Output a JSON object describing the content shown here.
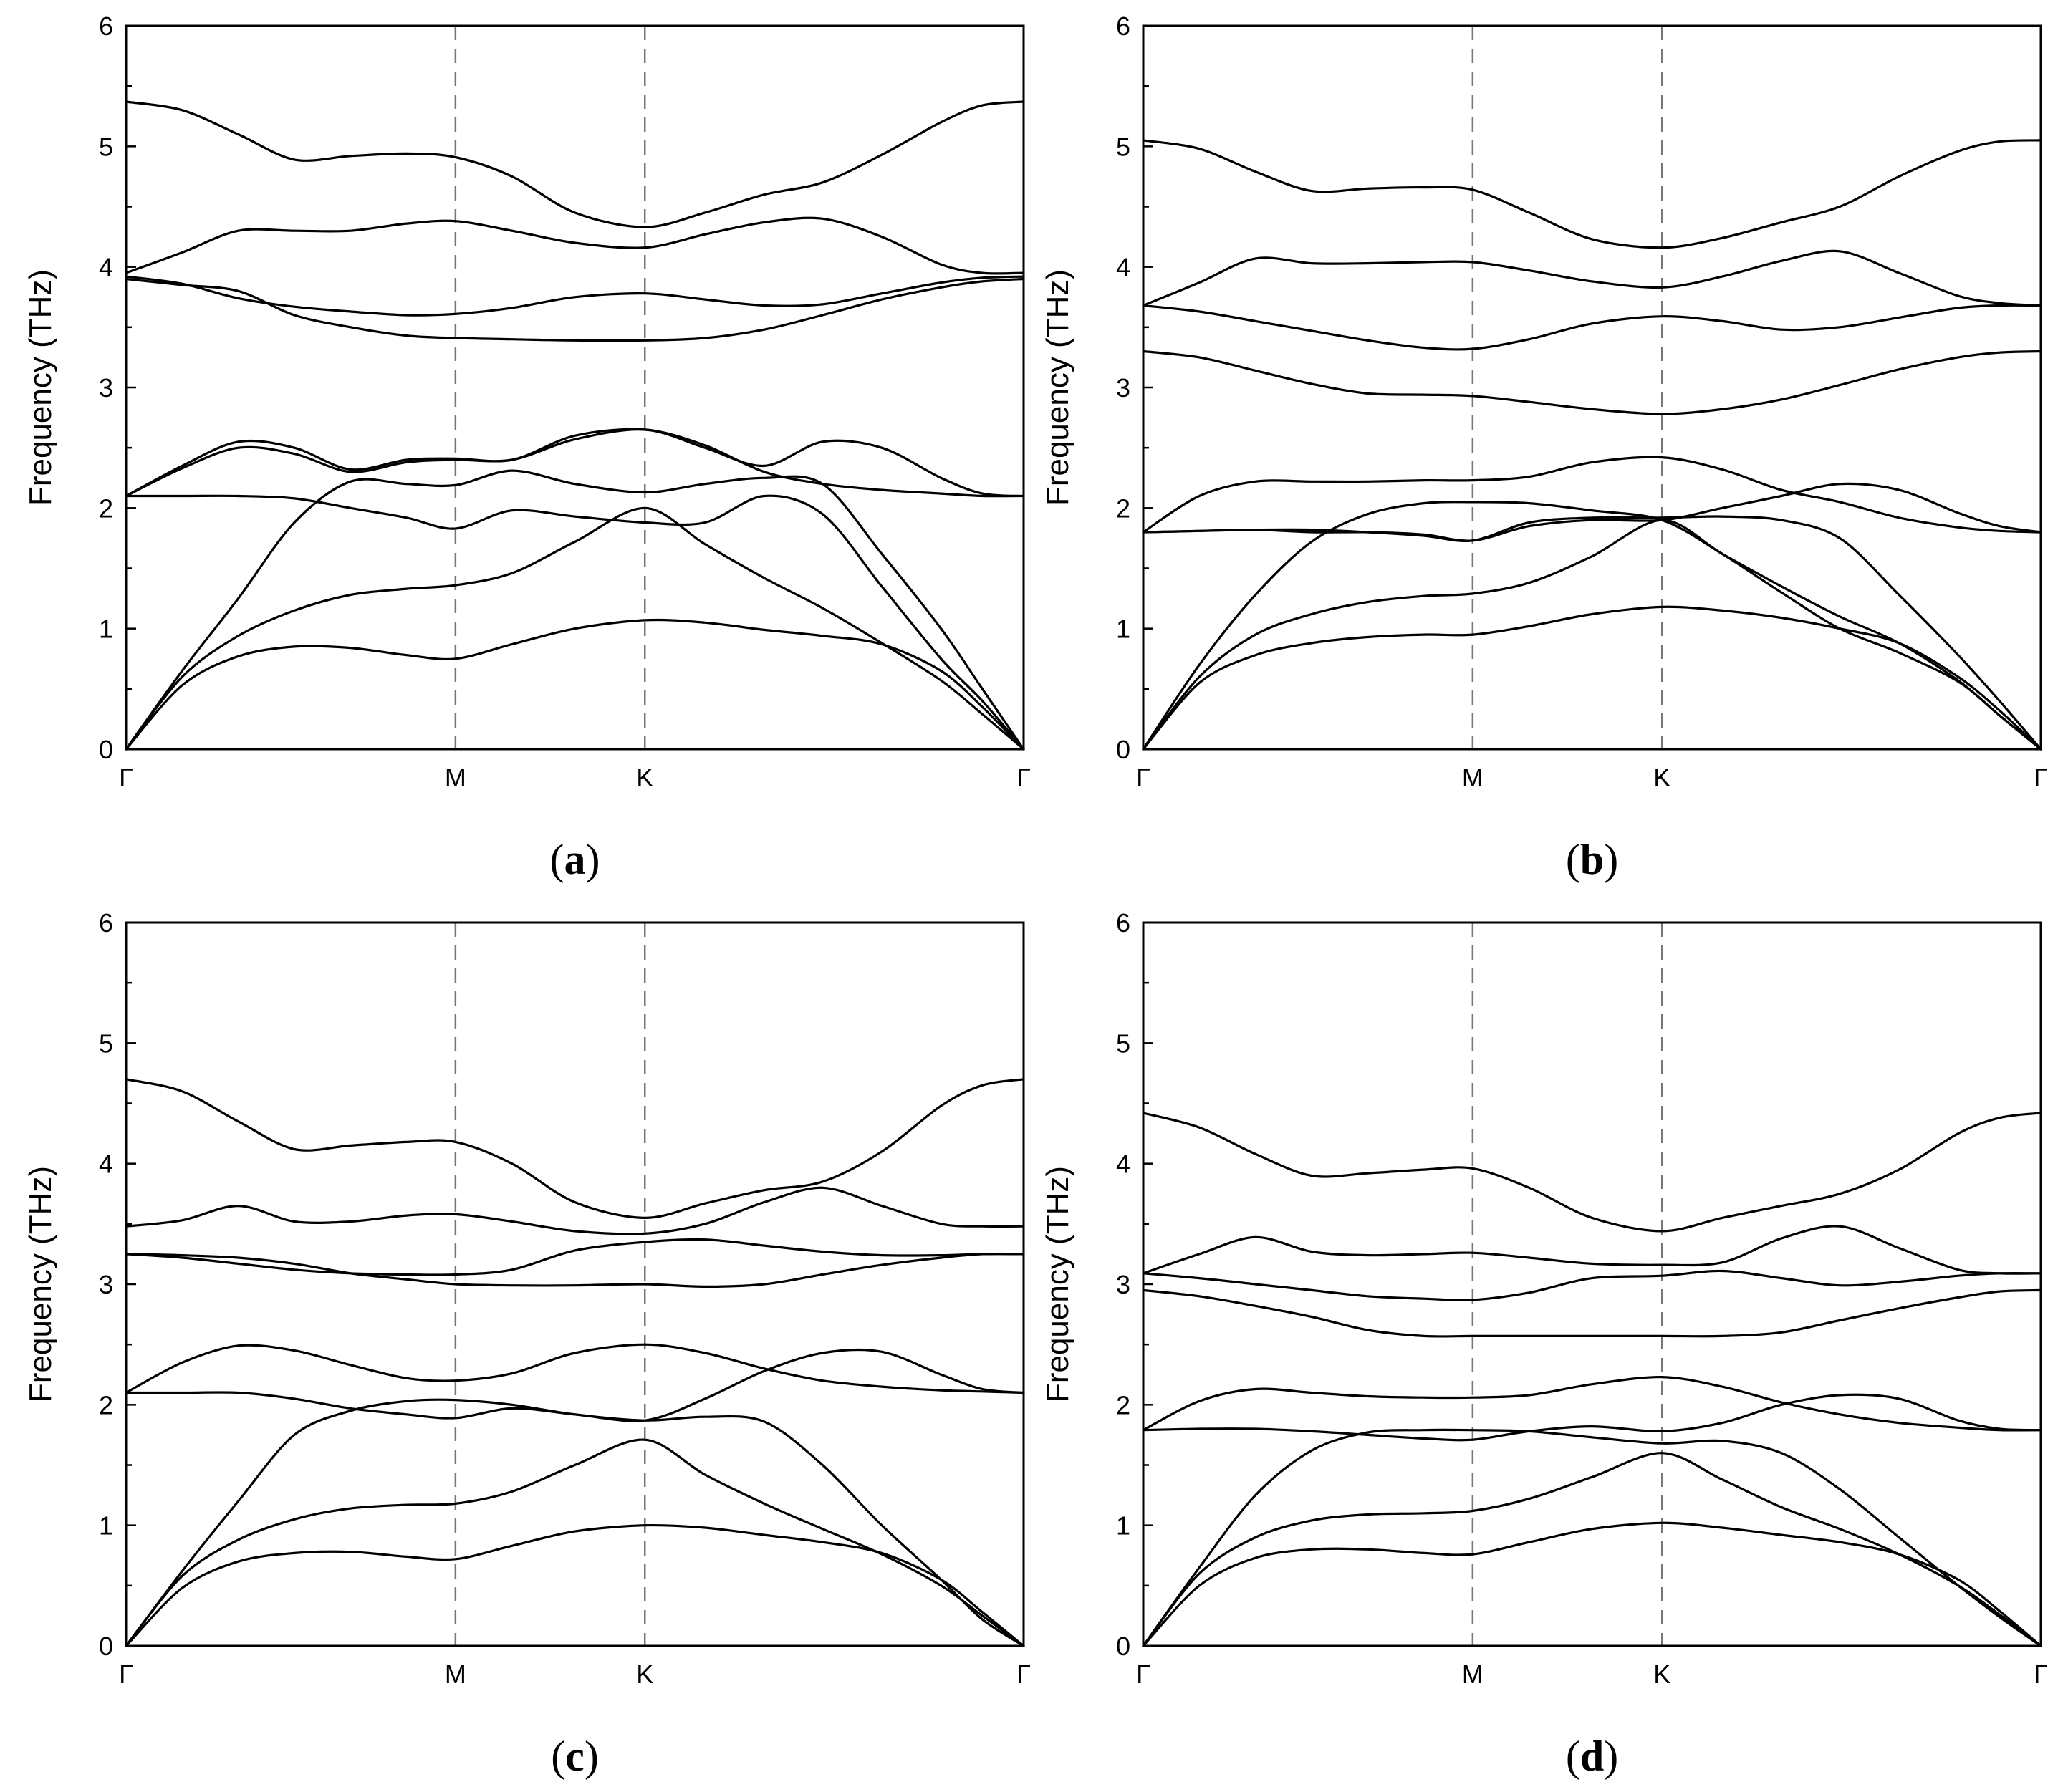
{
  "chart_data": [
    {
      "type": "line",
      "caption_letter": "a",
      "ylabel": "Frequency (THz)",
      "ylim": [
        0,
        6
      ],
      "yticks": [
        0,
        1,
        2,
        3,
        4,
        5,
        6
      ],
      "x": [
        0,
        0.0625,
        0.125,
        0.1875,
        0.25,
        0.3125,
        0.367,
        0.43,
        0.5,
        0.578,
        0.645,
        0.711,
        0.776,
        0.842,
        0.908,
        0.954,
        1
      ],
      "high_symmetry_points": [
        {
          "label": "Γ",
          "x": 0
        },
        {
          "label": "M",
          "x": 0.367
        },
        {
          "label": "K",
          "x": 0.578
        },
        {
          "label": "Γ",
          "x": 1
        }
      ],
      "series": [
        {
          "values": [
            0,
            0.53,
            0.77,
            0.85,
            0.84,
            0.78,
            0.75,
            0.87,
            1.0,
            1.07,
            1.05,
            0.99,
            0.94,
            0.87,
            0.65,
            0.35,
            0
          ]
        },
        {
          "values": [
            0,
            0.6,
            0.94,
            1.15,
            1.28,
            1.33,
            1.36,
            1.46,
            1.72,
            2.0,
            1.7,
            1.42,
            1.17,
            0.88,
            0.57,
            0.29,
            0
          ]
        },
        {
          "values": [
            0,
            0.65,
            1.25,
            1.88,
            2.22,
            2.2,
            2.19,
            2.31,
            2.2,
            2.13,
            2.2,
            2.25,
            2.2,
            1.62,
            1.0,
            0.5,
            0
          ]
        },
        {
          "values": [
            2.1,
            2.1,
            2.1,
            2.08,
            2.0,
            1.92,
            1.83,
            1.98,
            1.93,
            1.88,
            1.88,
            2.1,
            1.95,
            1.35,
            0.75,
            0.4,
            0
          ]
        },
        {
          "values": [
            2.1,
            2.35,
            2.55,
            2.5,
            2.32,
            2.4,
            2.41,
            2.4,
            2.6,
            2.65,
            2.52,
            2.3,
            2.2,
            2.15,
            2.12,
            2.1,
            2.1
          ]
        },
        {
          "values": [
            2.1,
            2.33,
            2.5,
            2.45,
            2.3,
            2.38,
            2.4,
            2.4,
            2.57,
            2.65,
            2.5,
            2.35,
            2.55,
            2.5,
            2.25,
            2.12,
            2.1
          ]
        },
        {
          "values": [
            3.9,
            3.85,
            3.8,
            3.6,
            3.5,
            3.43,
            3.41,
            3.4,
            3.39,
            3.39,
            3.41,
            3.48,
            3.6,
            3.73,
            3.83,
            3.88,
            3.9
          ]
        },
        {
          "values": [
            3.92,
            3.86,
            3.74,
            3.67,
            3.63,
            3.6,
            3.61,
            3.66,
            3.75,
            3.78,
            3.73,
            3.68,
            3.69,
            3.78,
            3.87,
            3.91,
            3.92
          ]
        },
        {
          "values": [
            3.95,
            4.12,
            4.3,
            4.3,
            4.3,
            4.36,
            4.38,
            4.3,
            4.2,
            4.16,
            4.27,
            4.37,
            4.4,
            4.25,
            4.02,
            3.95,
            3.95
          ]
        },
        {
          "values": [
            5.37,
            5.3,
            5.1,
            4.89,
            4.92,
            4.94,
            4.91,
            4.75,
            4.45,
            4.33,
            4.45,
            4.6,
            4.7,
            4.93,
            5.2,
            5.34,
            5.37
          ]
        }
      ]
    },
    {
      "type": "line",
      "caption_letter": "b",
      "ylabel": "Frequency (THz)",
      "ylim": [
        0,
        6
      ],
      "yticks": [
        0,
        1,
        2,
        3,
        4,
        5,
        6
      ],
      "x": [
        0,
        0.0625,
        0.125,
        0.1875,
        0.25,
        0.3125,
        0.367,
        0.43,
        0.5,
        0.578,
        0.645,
        0.711,
        0.776,
        0.842,
        0.908,
        0.954,
        1
      ],
      "high_symmetry_points": [
        {
          "label": "Γ",
          "x": 0
        },
        {
          "label": "M",
          "x": 0.367
        },
        {
          "label": "K",
          "x": 0.578
        },
        {
          "label": "Γ",
          "x": 1
        }
      ],
      "series": [
        {
          "values": [
            0,
            0.55,
            0.78,
            0.88,
            0.93,
            0.95,
            0.95,
            1.02,
            1.12,
            1.18,
            1.15,
            1.09,
            1.0,
            0.88,
            0.6,
            0.32,
            0
          ]
        },
        {
          "values": [
            0,
            0.6,
            0.95,
            1.12,
            1.22,
            1.27,
            1.29,
            1.38,
            1.6,
            1.9,
            1.62,
            1.35,
            1.1,
            0.88,
            0.57,
            0.28,
            0
          ]
        },
        {
          "values": [
            0,
            0.7,
            1.28,
            1.72,
            1.95,
            2.04,
            2.05,
            2.04,
            1.98,
            1.9,
            1.62,
            1.3,
            1.0,
            0.8,
            0.56,
            0.28,
            0
          ]
        },
        {
          "values": [
            1.8,
            1.81,
            1.82,
            1.82,
            1.8,
            1.77,
            1.73,
            1.88,
            1.92,
            1.92,
            1.93,
            1.9,
            1.75,
            1.28,
            0.78,
            0.4,
            0
          ]
        },
        {
          "values": [
            1.8,
            1.81,
            1.82,
            1.8,
            1.8,
            1.78,
            1.73,
            1.85,
            1.9,
            1.9,
            2.0,
            2.1,
            2.2,
            2.15,
            1.96,
            1.85,
            1.8
          ]
        },
        {
          "values": [
            1.8,
            2.1,
            2.22,
            2.22,
            2.22,
            2.23,
            2.23,
            2.26,
            2.38,
            2.42,
            2.32,
            2.15,
            2.05,
            1.92,
            1.84,
            1.81,
            1.8
          ]
        },
        {
          "values": [
            3.3,
            3.25,
            3.14,
            3.03,
            2.95,
            2.94,
            2.93,
            2.88,
            2.82,
            2.78,
            2.82,
            2.9,
            3.02,
            3.15,
            3.25,
            3.29,
            3.3
          ]
        },
        {
          "values": [
            3.68,
            3.63,
            3.55,
            3.47,
            3.39,
            3.33,
            3.32,
            3.4,
            3.53,
            3.59,
            3.55,
            3.48,
            3.5,
            3.58,
            3.66,
            3.68,
            3.68
          ]
        },
        {
          "values": [
            3.68,
            3.87,
            4.07,
            4.03,
            4.03,
            4.04,
            4.04,
            3.97,
            3.88,
            3.83,
            3.92,
            4.05,
            4.13,
            3.95,
            3.76,
            3.7,
            3.68
          ]
        },
        {
          "values": [
            5.05,
            4.98,
            4.79,
            4.63,
            4.65,
            4.66,
            4.64,
            4.45,
            4.23,
            4.16,
            4.24,
            4.37,
            4.5,
            4.75,
            4.96,
            5.04,
            5.05
          ]
        }
      ]
    },
    {
      "type": "line",
      "caption_letter": "c",
      "ylabel": "Frequency (THz)",
      "ylim": [
        0,
        6
      ],
      "yticks": [
        0,
        1,
        2,
        3,
        4,
        5,
        6
      ],
      "x": [
        0,
        0.0625,
        0.125,
        0.1875,
        0.25,
        0.3125,
        0.367,
        0.43,
        0.5,
        0.578,
        0.645,
        0.711,
        0.776,
        0.842,
        0.908,
        0.954,
        1
      ],
      "high_symmetry_points": [
        {
          "label": "Γ",
          "x": 0
        },
        {
          "label": "M",
          "x": 0.367
        },
        {
          "label": "K",
          "x": 0.578
        },
        {
          "label": "Γ",
          "x": 1
        }
      ],
      "series": [
        {
          "values": [
            0,
            0.48,
            0.7,
            0.77,
            0.78,
            0.74,
            0.72,
            0.83,
            0.95,
            1.0,
            0.98,
            0.92,
            0.86,
            0.77,
            0.55,
            0.28,
            0
          ]
        },
        {
          "values": [
            0,
            0.58,
            0.88,
            1.05,
            1.14,
            1.17,
            1.18,
            1.28,
            1.5,
            1.71,
            1.42,
            1.18,
            0.97,
            0.76,
            0.5,
            0.25,
            0
          ]
        },
        {
          "values": [
            0,
            0.62,
            1.2,
            1.75,
            1.95,
            2.03,
            2.04,
            2.0,
            1.92,
            1.87,
            1.9,
            1.86,
            1.5,
            1.0,
            0.55,
            0.22,
            0
          ]
        },
        {
          "values": [
            2.1,
            2.1,
            2.1,
            2.05,
            1.97,
            1.92,
            1.89,
            1.97,
            1.92,
            1.87,
            2.05,
            2.28,
            2.43,
            2.44,
            2.25,
            2.13,
            2.1
          ]
        },
        {
          "values": [
            2.1,
            2.35,
            2.49,
            2.45,
            2.33,
            2.22,
            2.2,
            2.26,
            2.43,
            2.5,
            2.43,
            2.3,
            2.2,
            2.15,
            2.12,
            2.11,
            2.1
          ]
        },
        {
          "values": [
            3.25,
            3.24,
            3.22,
            3.17,
            3.09,
            3.04,
            3.0,
            2.99,
            2.99,
            3.0,
            2.98,
            3.0,
            3.08,
            3.16,
            3.22,
            3.25,
            3.25
          ]
        },
        {
          "values": [
            3.25,
            3.22,
            3.17,
            3.12,
            3.09,
            3.08,
            3.08,
            3.12,
            3.28,
            3.35,
            3.37,
            3.32,
            3.27,
            3.24,
            3.24,
            3.25,
            3.25
          ]
        },
        {
          "values": [
            3.48,
            3.53,
            3.65,
            3.52,
            3.52,
            3.57,
            3.58,
            3.52,
            3.44,
            3.42,
            3.5,
            3.68,
            3.8,
            3.65,
            3.5,
            3.48,
            3.48
          ]
        },
        {
          "values": [
            4.7,
            4.6,
            4.35,
            4.12,
            4.15,
            4.18,
            4.18,
            4.0,
            3.68,
            3.55,
            3.67,
            3.78,
            3.85,
            4.1,
            4.48,
            4.65,
            4.7
          ]
        }
      ]
    },
    {
      "type": "line",
      "caption_letter": "d",
      "ylabel": "Frequency (THz)",
      "ylim": [
        0,
        6
      ],
      "yticks": [
        0,
        1,
        2,
        3,
        4,
        5,
        6
      ],
      "x": [
        0,
        0.0625,
        0.125,
        0.1875,
        0.25,
        0.3125,
        0.367,
        0.43,
        0.5,
        0.578,
        0.645,
        0.711,
        0.776,
        0.842,
        0.908,
        0.954,
        1
      ],
      "high_symmetry_points": [
        {
          "label": "Γ",
          "x": 0
        },
        {
          "label": "M",
          "x": 0.367
        },
        {
          "label": "K",
          "x": 0.578
        },
        {
          "label": "Γ",
          "x": 1
        }
      ],
      "series": [
        {
          "values": [
            0,
            0.5,
            0.73,
            0.8,
            0.8,
            0.77,
            0.76,
            0.86,
            0.97,
            1.02,
            0.98,
            0.92,
            0.86,
            0.76,
            0.55,
            0.29,
            0
          ]
        },
        {
          "values": [
            0,
            0.6,
            0.9,
            1.04,
            1.09,
            1.1,
            1.12,
            1.22,
            1.4,
            1.6,
            1.38,
            1.15,
            0.97,
            0.76,
            0.5,
            0.26,
            0
          ]
        },
        {
          "values": [
            0,
            0.65,
            1.25,
            1.62,
            1.77,
            1.79,
            1.79,
            1.78,
            1.73,
            1.68,
            1.7,
            1.6,
            1.3,
            0.9,
            0.5,
            0.24,
            0
          ]
        },
        {
          "values": [
            1.79,
            1.8,
            1.8,
            1.78,
            1.75,
            1.72,
            1.71,
            1.78,
            1.82,
            1.78,
            1.85,
            2.0,
            2.08,
            2.05,
            1.87,
            1.8,
            1.79
          ]
        },
        {
          "values": [
            1.79,
            2.03,
            2.13,
            2.1,
            2.07,
            2.06,
            2.06,
            2.08,
            2.17,
            2.23,
            2.15,
            2.02,
            1.92,
            1.85,
            1.81,
            1.79,
            1.79
          ]
        },
        {
          "values": [
            2.95,
            2.9,
            2.82,
            2.73,
            2.62,
            2.57,
            2.57,
            2.57,
            2.57,
            2.57,
            2.57,
            2.6,
            2.7,
            2.8,
            2.89,
            2.94,
            2.95
          ]
        },
        {
          "values": [
            3.09,
            3.05,
            3.0,
            2.95,
            2.9,
            2.88,
            2.87,
            2.93,
            3.05,
            3.07,
            3.11,
            3.05,
            2.99,
            3.02,
            3.07,
            3.09,
            3.09
          ]
        },
        {
          "values": [
            3.09,
            3.25,
            3.39,
            3.27,
            3.24,
            3.25,
            3.26,
            3.22,
            3.17,
            3.16,
            3.18,
            3.38,
            3.48,
            3.3,
            3.12,
            3.09,
            3.09
          ]
        },
        {
          "values": [
            4.42,
            4.3,
            4.08,
            3.9,
            3.92,
            3.95,
            3.96,
            3.8,
            3.55,
            3.44,
            3.55,
            3.65,
            3.75,
            3.95,
            4.25,
            4.38,
            4.42
          ]
        }
      ]
    }
  ]
}
